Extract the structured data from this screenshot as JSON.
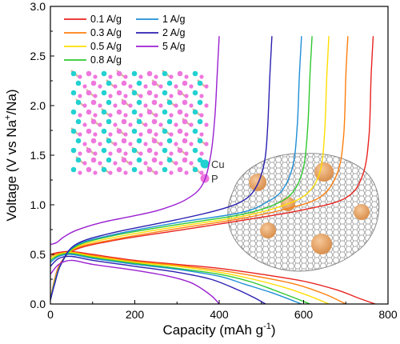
{
  "chart_data": {
    "type": "line",
    "xlabel": "Capacity (mAh g",
    "xlabel_sup": "-1",
    "xlabel_close": ")",
    "ylabel": "Voltage (V vs Na",
    "ylabel_sup": "+",
    "ylabel_close": "/Na)",
    "xlim": [
      0,
      800
    ],
    "ylim": [
      0,
      3.0
    ],
    "xticks": [
      0,
      200,
      400,
      600,
      800
    ],
    "xtick_labels": [
      "0",
      "200",
      "400",
      "600",
      "800"
    ],
    "yticks": [
      0.0,
      0.5,
      1.0,
      1.5,
      2.0,
      2.5,
      3.0
    ],
    "ytick_labels": [
      "0.0",
      "0.5",
      "1.0",
      "1.5",
      "2.0",
      "2.5",
      "3.0"
    ],
    "legend_placement": "top-left",
    "grid": false,
    "series": [
      {
        "name": "0.1 A/g",
        "color": "#e8231f",
        "discharge": [
          [
            0,
            0.5
          ],
          [
            20,
            0.52
          ],
          [
            50,
            0.53
          ],
          [
            100,
            0.5
          ],
          [
            200,
            0.44
          ],
          [
            300,
            0.4
          ],
          [
            400,
            0.36
          ],
          [
            500,
            0.3
          ],
          [
            600,
            0.23
          ],
          [
            680,
            0.14
          ],
          [
            730,
            0.06
          ],
          [
            770,
            0.0
          ]
        ],
        "charge": [
          [
            0,
            0.04
          ],
          [
            10,
            0.25
          ],
          [
            25,
            0.42
          ],
          [
            60,
            0.55
          ],
          [
            150,
            0.64
          ],
          [
            300,
            0.74
          ],
          [
            450,
            0.84
          ],
          [
            600,
            0.95
          ],
          [
            700,
            1.07
          ],
          [
            740,
            1.3
          ],
          [
            755,
            1.7
          ],
          [
            760,
            2.3
          ],
          [
            765,
            2.7
          ]
        ]
      },
      {
        "name": "0.3 A/g",
        "color": "#ff7f0e",
        "discharge": [
          [
            0,
            0.48
          ],
          [
            20,
            0.51
          ],
          [
            50,
            0.52
          ],
          [
            100,
            0.49
          ],
          [
            200,
            0.43
          ],
          [
            300,
            0.39
          ],
          [
            400,
            0.34
          ],
          [
            500,
            0.27
          ],
          [
            580,
            0.2
          ],
          [
            650,
            0.1
          ],
          [
            700,
            0.0
          ]
        ],
        "charge": [
          [
            0,
            0.04
          ],
          [
            10,
            0.24
          ],
          [
            25,
            0.41
          ],
          [
            60,
            0.56
          ],
          [
            150,
            0.65
          ],
          [
            300,
            0.76
          ],
          [
            450,
            0.86
          ],
          [
            560,
            0.96
          ],
          [
            640,
            1.08
          ],
          [
            680,
            1.32
          ],
          [
            695,
            1.7
          ],
          [
            700,
            2.3
          ],
          [
            705,
            2.7
          ]
        ]
      },
      {
        "name": "0.5 A/g",
        "color": "#ffdd00",
        "discharge": [
          [
            0,
            0.46
          ],
          [
            20,
            0.5
          ],
          [
            50,
            0.52
          ],
          [
            100,
            0.48
          ],
          [
            200,
            0.42
          ],
          [
            300,
            0.38
          ],
          [
            400,
            0.32
          ],
          [
            480,
            0.25
          ],
          [
            560,
            0.16
          ],
          [
            620,
            0.07
          ],
          [
            660,
            0.0
          ]
        ],
        "charge": [
          [
            0,
            0.04
          ],
          [
            10,
            0.23
          ],
          [
            25,
            0.41
          ],
          [
            60,
            0.57
          ],
          [
            150,
            0.67
          ],
          [
            300,
            0.78
          ],
          [
            450,
            0.88
          ],
          [
            550,
            0.99
          ],
          [
            610,
            1.12
          ],
          [
            640,
            1.35
          ],
          [
            650,
            1.75
          ],
          [
            655,
            2.3
          ],
          [
            660,
            2.7
          ]
        ]
      },
      {
        "name": "0.8 A/g",
        "color": "#2ec82e",
        "discharge": [
          [
            0,
            0.44
          ],
          [
            20,
            0.49
          ],
          [
            50,
            0.51
          ],
          [
            100,
            0.47
          ],
          [
            200,
            0.41
          ],
          [
            300,
            0.36
          ],
          [
            400,
            0.3
          ],
          [
            470,
            0.23
          ],
          [
            530,
            0.14
          ],
          [
            580,
            0.06
          ],
          [
            615,
            0.0
          ]
        ],
        "charge": [
          [
            0,
            0.04
          ],
          [
            10,
            0.22
          ],
          [
            25,
            0.4
          ],
          [
            60,
            0.58
          ],
          [
            150,
            0.69
          ],
          [
            300,
            0.8
          ],
          [
            450,
            0.9
          ],
          [
            530,
            1.0
          ],
          [
            575,
            1.13
          ],
          [
            600,
            1.38
          ],
          [
            610,
            1.8
          ],
          [
            615,
            2.3
          ],
          [
            620,
            2.7
          ]
        ]
      },
      {
        "name": "1 A/g",
        "color": "#1f8fd6",
        "discharge": [
          [
            0,
            0.42
          ],
          [
            20,
            0.48
          ],
          [
            50,
            0.5
          ],
          [
            100,
            0.46
          ],
          [
            200,
            0.4
          ],
          [
            300,
            0.35
          ],
          [
            400,
            0.28
          ],
          [
            460,
            0.2
          ],
          [
            520,
            0.12
          ],
          [
            565,
            0.05
          ],
          [
            595,
            0.0
          ]
        ],
        "charge": [
          [
            0,
            0.04
          ],
          [
            10,
            0.21
          ],
          [
            25,
            0.4
          ],
          [
            60,
            0.59
          ],
          [
            150,
            0.7
          ],
          [
            300,
            0.82
          ],
          [
            450,
            0.92
          ],
          [
            510,
            1.02
          ],
          [
            550,
            1.15
          ],
          [
            575,
            1.4
          ],
          [
            585,
            1.8
          ],
          [
            590,
            2.3
          ],
          [
            595,
            2.7
          ]
        ]
      },
      {
        "name": "2 A/g",
        "color": "#2a1fb0",
        "discharge": [
          [
            0,
            0.38
          ],
          [
            20,
            0.46
          ],
          [
            50,
            0.48
          ],
          [
            100,
            0.44
          ],
          [
            200,
            0.38
          ],
          [
            300,
            0.32
          ],
          [
            380,
            0.25
          ],
          [
            440,
            0.15
          ],
          [
            480,
            0.07
          ],
          [
            510,
            0.0
          ]
        ],
        "charge": [
          [
            0,
            0.04
          ],
          [
            10,
            0.2
          ],
          [
            25,
            0.4
          ],
          [
            60,
            0.6
          ],
          [
            150,
            0.72
          ],
          [
            300,
            0.85
          ],
          [
            400,
            0.95
          ],
          [
            460,
            1.05
          ],
          [
            490,
            1.2
          ],
          [
            508,
            1.45
          ],
          [
            515,
            1.8
          ],
          [
            520,
            2.3
          ],
          [
            525,
            2.7
          ]
        ]
      },
      {
        "name": "5 A/g",
        "color": "#9b1fd1",
        "discharge": [
          [
            0,
            0.3
          ],
          [
            20,
            0.4
          ],
          [
            50,
            0.44
          ],
          [
            100,
            0.4
          ],
          [
            200,
            0.34
          ],
          [
            280,
            0.28
          ],
          [
            330,
            0.22
          ],
          [
            360,
            0.15
          ],
          [
            385,
            0.07
          ],
          [
            400,
            0.0
          ]
        ],
        "charge": [
          [
            0,
            0.6
          ],
          [
            15,
            0.62
          ],
          [
            30,
            0.67
          ],
          [
            60,
            0.74
          ],
          [
            120,
            0.82
          ],
          [
            200,
            0.89
          ],
          [
            260,
            0.95
          ],
          [
            320,
            1.05
          ],
          [
            360,
            1.2
          ],
          [
            380,
            1.5
          ],
          [
            390,
            1.9
          ],
          [
            395,
            2.3
          ],
          [
            400,
            2.7
          ]
        ]
      }
    ]
  },
  "inset": {
    "crystal": {
      "legend": [
        {
          "label": "Cu",
          "color": "#22d1d1"
        },
        {
          "label": "P",
          "color": "#ee77dd"
        }
      ]
    },
    "composite": {
      "shell_color": "#9a9a9a",
      "particle_color": "#e8a868"
    }
  }
}
